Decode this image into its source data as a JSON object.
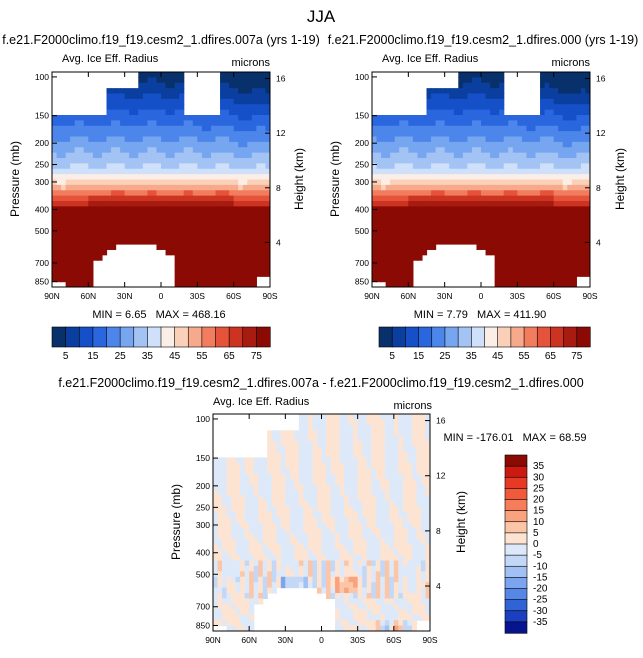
{
  "figure": {
    "season_title": "JJA"
  },
  "chart_data": [
    {
      "type": "heatmap",
      "case_title": "f.e21.F2000climo.f19_f19.cesm2_1.dfires.007a (yrs 1-19)",
      "left_string": "Avg. Ice Eff. Radius",
      "right_string": "microns",
      "ylabel": "Pressure (mb)",
      "ylabel_right": "Height (km)",
      "x_ticks": [
        "90N",
        "60N",
        "30N",
        "0",
        "30S",
        "60S",
        "90S"
      ],
      "y_ticks": [
        "100",
        "150",
        "200",
        "250",
        "300",
        "400",
        "500",
        "700",
        "850"
      ],
      "y2_ticks": [
        "16",
        "12",
        "8",
        "4"
      ],
      "x_range": [
        90,
        -90
      ],
      "y_range_mb": [
        100,
        900
      ],
      "log_pressure": true,
      "min_label": "MIN = ",
      "min_value": "6.65",
      "max_label": "MAX = ",
      "max_value": "468.16",
      "colorbar_levels": [
        "5",
        "15",
        "25",
        "35",
        "45",
        "55",
        "65",
        "75"
      ]
    },
    {
      "type": "heatmap",
      "case_title": "f.e21.F2000climo.f19_f19.cesm2_1.dfires.000 (yrs 1-19)",
      "left_string": "Avg. Ice Eff. Radius",
      "right_string": "microns",
      "ylabel": "Pressure (mb)",
      "ylabel_right": "Height (km)",
      "x_ticks": [
        "90N",
        "60N",
        "30N",
        "0",
        "30S",
        "60S",
        "90S"
      ],
      "y_ticks": [
        "100",
        "150",
        "200",
        "250",
        "300",
        "400",
        "500",
        "700",
        "850"
      ],
      "y2_ticks": [
        "16",
        "12",
        "8",
        "4"
      ],
      "x_range": [
        90,
        -90
      ],
      "y_range_mb": [
        100,
        900
      ],
      "log_pressure": true,
      "min_label": "MIN = ",
      "min_value": "7.79",
      "max_label": "MAX = ",
      "max_value": "411.90",
      "colorbar_levels": [
        "5",
        "15",
        "25",
        "35",
        "45",
        "55",
        "65",
        "75"
      ]
    },
    {
      "type": "heatmap",
      "case_title": "f.e21.F2000climo.f19_f19.cesm2_1.dfires.007a - f.e21.F2000climo.f19_f19.cesm2_1.dfires.000",
      "left_string": "Avg. Ice Eff. Radius",
      "right_string": "microns",
      "ylabel": "Pressure (mb)",
      "ylabel_right": "Height (km)",
      "x_ticks": [
        "90N",
        "60N",
        "30N",
        "0",
        "30S",
        "60S",
        "90S"
      ],
      "y_ticks": [
        "100",
        "150",
        "200",
        "250",
        "300",
        "400",
        "500",
        "700",
        "850"
      ],
      "y2_ticks": [
        "16",
        "12",
        "8",
        "4"
      ],
      "x_range": [
        90,
        -90
      ],
      "y_range_mb": [
        100,
        900
      ],
      "log_pressure": true,
      "min_label": "MIN = ",
      "min_value": "-176.01",
      "max_label": "MAX = ",
      "max_value": "68.59",
      "colorbar_levels": [
        "35",
        "30",
        "25",
        "20",
        "15",
        "10",
        "5",
        "0",
        "-5",
        "-10",
        "-15",
        "-20",
        "-25",
        "-30",
        "-35"
      ]
    }
  ],
  "palettes": {
    "field": [
      "#08306b",
      "#0a3fa0",
      "#1550c8",
      "#2a66de",
      "#4d86ea",
      "#76a6f0",
      "#a3c3f5",
      "#cfe0fa",
      "#fbeee6",
      "#fbd0b9",
      "#f7a98b",
      "#f27d5e",
      "#e5533a",
      "#cc3320",
      "#a81b10",
      "#8b0a04"
    ],
    "diff": [
      "#8b0a04",
      "#cc1a10",
      "#e73a25",
      "#f05a3a",
      "#f57d5a",
      "#f9a27e",
      "#fbc6a8",
      "#fde4d2",
      "#dde9f9",
      "#c3d8f7",
      "#a1c1f4",
      "#7ba6ef",
      "#5588e6",
      "#3064d6",
      "#1a3fc0",
      "#07148f"
    ]
  }
}
